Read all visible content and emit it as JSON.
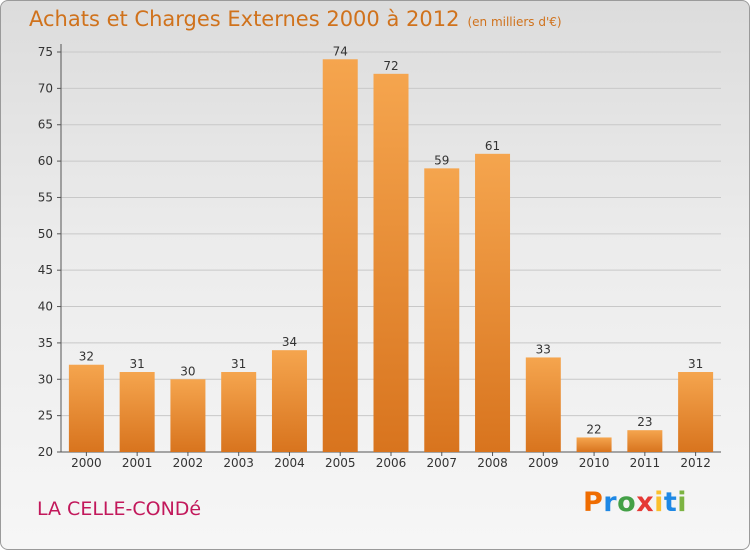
{
  "header": {
    "title": "Achats et Charges Externes 2000 à 2012",
    "subtitle": "(en milliers d'€)"
  },
  "footer": {
    "commune": "LA CELLE-CONDé",
    "logo": [
      "P",
      "r",
      "o",
      "x",
      "i",
      "t",
      "i"
    ]
  },
  "colors": {
    "bar_top": "#f5a54e",
    "bar_bottom": "#d8741e",
    "accent": "#d0721c",
    "commune": "#c2185b",
    "logo": [
      "#ef6c00",
      "#1e88e5",
      "#43a047",
      "#e53935",
      "#fbc02d",
      "#1e88e5",
      "#7cb342"
    ]
  },
  "chart_data": {
    "type": "bar",
    "categories": [
      "2000",
      "2001",
      "2002",
      "2003",
      "2004",
      "2005",
      "2006",
      "2007",
      "2008",
      "2009",
      "2010",
      "2011",
      "2012"
    ],
    "values": [
      32,
      31,
      30,
      31,
      34,
      74,
      72,
      59,
      61,
      33,
      22,
      23,
      31
    ],
    "ylim": [
      20,
      75
    ],
    "yticks": [
      20,
      25,
      30,
      35,
      40,
      45,
      50,
      55,
      60,
      65,
      70,
      75
    ],
    "grid": true,
    "title": "Achats et Charges Externes 2000 à 2012",
    "subtitle": "(en milliers d'€)"
  }
}
